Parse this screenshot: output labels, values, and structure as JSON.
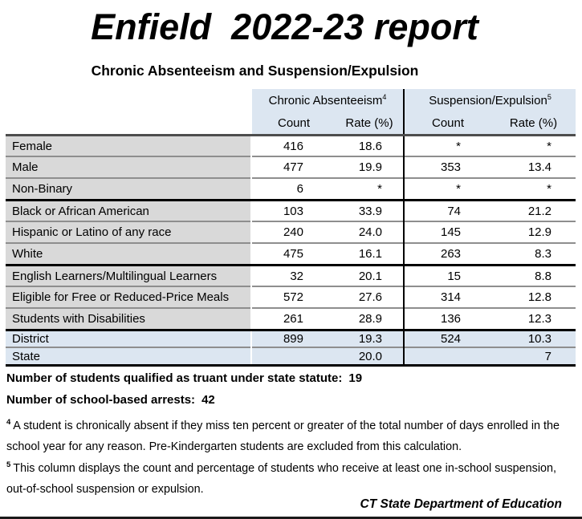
{
  "page": {
    "title": "Enfield  2022-23 report",
    "subtitle": "Chronic Absenteeism and Suspension/Expulsion",
    "source": "CT State Department of Education"
  },
  "colors": {
    "header_blue": "#dce6f1",
    "label_gray": "#d9d9d9",
    "total_row_blue": "#dce6f1",
    "thin_border": "#8e8e8e",
    "thick_border": "#000000"
  },
  "table": {
    "group_headers": [
      {
        "label": "Chronic Absenteeism",
        "sup": "4"
      },
      {
        "label": "Suspension/Expulsion",
        "sup": "5"
      }
    ],
    "col_headers": [
      "Count",
      "Rate (%)",
      "Count",
      "Rate (%)"
    ],
    "rows": [
      {
        "cells": [
          "Female",
          "416",
          "18.6",
          "*",
          "*"
        ]
      },
      {
        "cells": [
          "Male",
          "477",
          "19.9",
          "353",
          "13.4"
        ]
      },
      {
        "cells": [
          "Non-Binary",
          "6",
          "*",
          "*",
          "*"
        ]
      },
      {
        "cells": [
          "Black or African American",
          "103",
          "33.9",
          "74",
          "21.2"
        ]
      },
      {
        "cells": [
          "Hispanic or Latino of any race",
          "240",
          "24.0",
          "145",
          "12.9"
        ]
      },
      {
        "cells": [
          "White",
          "475",
          "16.1",
          "263",
          "8.3"
        ]
      },
      {
        "cells": [
          "English Learners/Multilingual Learners",
          "32",
          "20.1",
          "15",
          "8.8"
        ]
      },
      {
        "cells": [
          "Eligible for Free or Reduced-Price Meals",
          "572",
          "27.6",
          "314",
          "12.8"
        ]
      },
      {
        "cells": [
          "Students with Disabilities",
          "261",
          "28.9",
          "136",
          "12.3"
        ]
      },
      {
        "cells": [
          "District",
          "899",
          "19.3",
          "524",
          "10.3"
        ]
      },
      {
        "cells": [
          "State",
          "",
          "20.0",
          "",
          "7"
        ]
      }
    ]
  },
  "summaries": [
    {
      "label": "Number of students qualified as truant under state statute:",
      "value": "19"
    },
    {
      "label": "Number of school-based arrests:",
      "value": "42"
    }
  ],
  "footnotes": [
    {
      "sup": "4",
      "text": "A student is chronically absent if they miss ten percent or greater of the total number of days enrolled in the school year for any reason. Pre-Kindergarten students are excluded from this calculation."
    },
    {
      "sup": "5",
      "text": "This column displays the count and percentage of students who receive at least one in-school suspension, out-of-school suspension or expulsion."
    }
  ]
}
